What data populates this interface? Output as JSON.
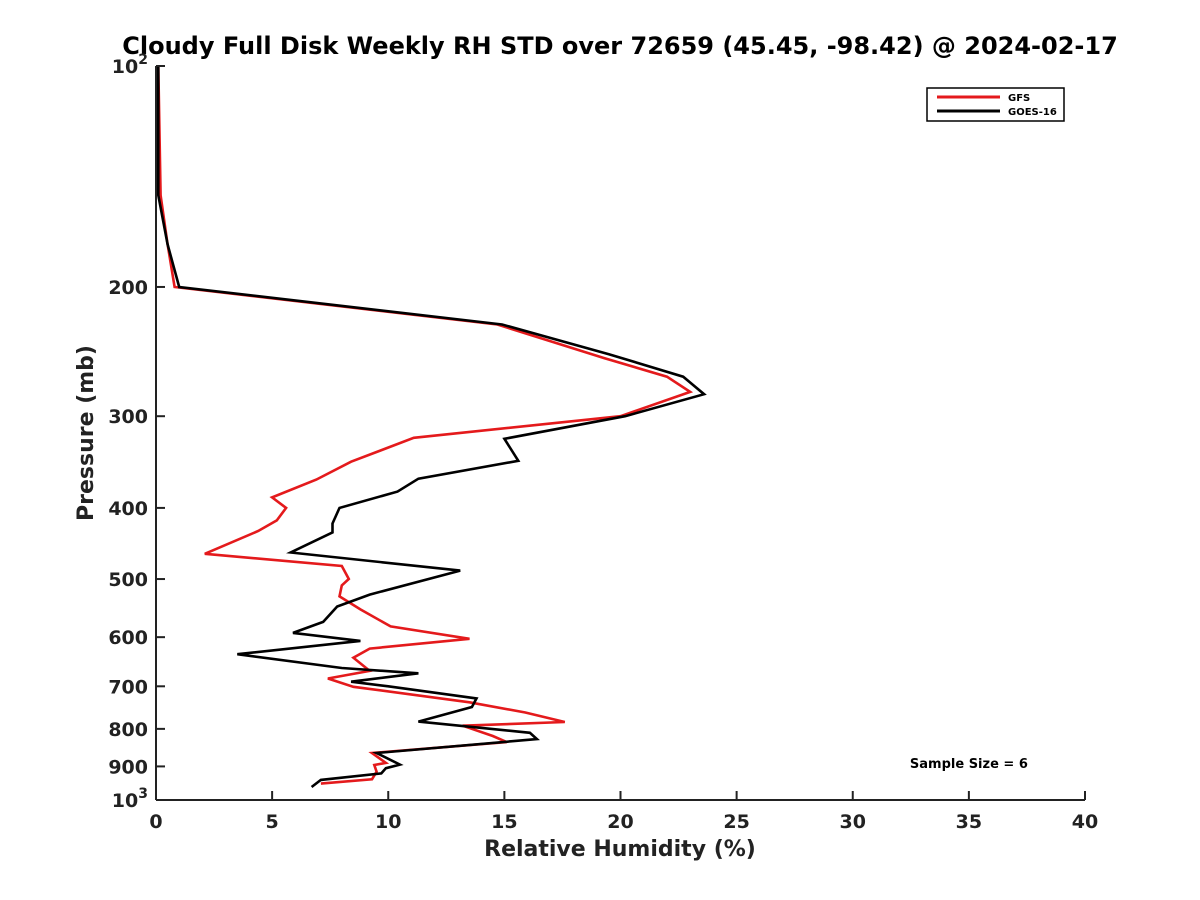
{
  "chart_data": {
    "type": "line",
    "title": "Cloudy Full Disk Weekly RH STD over 72659 (45.45, -98.42) @ 2024-02-17",
    "xlabel": "Relative Humidity (%)",
    "ylabel": "Pressure (mb)",
    "xlim": [
      0,
      40
    ],
    "ylim": [
      100,
      1000
    ],
    "y_scale": "log",
    "y_reversed": true,
    "grid": false,
    "legend_position": "top-right",
    "x_ticks": [
      0,
      5,
      10,
      15,
      20,
      25,
      30,
      35,
      40
    ],
    "x_tick_labels": [
      "0",
      "5",
      "10",
      "15",
      "20",
      "25",
      "30",
      "35",
      "40"
    ],
    "y_ticks": [
      100,
      200,
      300,
      400,
      500,
      600,
      700,
      800,
      900,
      1000
    ],
    "y_tick_labels": [
      {
        "base": "10",
        "exp": "2"
      },
      {
        "base": "200",
        "exp": ""
      },
      {
        "base": "300",
        "exp": ""
      },
      {
        "base": "400",
        "exp": ""
      },
      {
        "base": "500",
        "exp": ""
      },
      {
        "base": "600",
        "exp": ""
      },
      {
        "base": "700",
        "exp": ""
      },
      {
        "base": "800",
        "exp": ""
      },
      {
        "base": "900",
        "exp": ""
      },
      {
        "base": "10",
        "exp": "3"
      }
    ],
    "series": [
      {
        "name": "GFS",
        "color": "#e41a1c",
        "points": [
          [
            0.1,
            100
          ],
          [
            0.2,
            150
          ],
          [
            0.5,
            175
          ],
          [
            0.8,
            200
          ],
          [
            14.7,
            225
          ],
          [
            19.3,
            250
          ],
          [
            22.0,
            265
          ],
          [
            23.0,
            278
          ],
          [
            20.0,
            300
          ],
          [
            11.1,
            321
          ],
          [
            8.4,
            346
          ],
          [
            6.9,
            366
          ],
          [
            5.0,
            387
          ],
          [
            5.6,
            400
          ],
          [
            5.2,
            416
          ],
          [
            4.4,
            430
          ],
          [
            2.1,
            462
          ],
          [
            8.0,
            480
          ],
          [
            8.3,
            500
          ],
          [
            8.0,
            510
          ],
          [
            7.9,
            528
          ],
          [
            8.8,
            550
          ],
          [
            10.1,
            580
          ],
          [
            13.5,
            603
          ],
          [
            9.2,
            622
          ],
          [
            8.5,
            640
          ],
          [
            9.2,
            667
          ],
          [
            7.4,
            683
          ],
          [
            8.5,
            701
          ],
          [
            13.5,
            736
          ],
          [
            15.9,
            760
          ],
          [
            17.6,
            783
          ],
          [
            13.2,
            792
          ],
          [
            14.5,
            818
          ],
          [
            15.1,
            834
          ],
          [
            9.3,
            863
          ],
          [
            9.9,
            890
          ],
          [
            9.4,
            896
          ],
          [
            9.5,
            915
          ],
          [
            9.3,
            937
          ],
          [
            7.1,
            950
          ]
        ]
      },
      {
        "name": "GOES-16",
        "color": "#000000",
        "points": [
          [
            0.1,
            100
          ],
          [
            0.1,
            150
          ],
          [
            0.5,
            175
          ],
          [
            1.0,
            200
          ],
          [
            14.9,
            225
          ],
          [
            19.5,
            247
          ],
          [
            22.7,
            265
          ],
          [
            23.6,
            280
          ],
          [
            20.2,
            300
          ],
          [
            15.0,
            322
          ],
          [
            15.6,
            345
          ],
          [
            11.3,
            365
          ],
          [
            10.4,
            380
          ],
          [
            7.9,
            400
          ],
          [
            7.6,
            420
          ],
          [
            7.6,
            432
          ],
          [
            5.8,
            460
          ],
          [
            13.1,
            487
          ],
          [
            9.2,
            525
          ],
          [
            7.8,
            545
          ],
          [
            7.2,
            572
          ],
          [
            5.9,
            592
          ],
          [
            8.8,
            607
          ],
          [
            3.5,
            633
          ],
          [
            8.0,
            661
          ],
          [
            11.3,
            672
          ],
          [
            8.4,
            690
          ],
          [
            10.0,
            700
          ],
          [
            13.8,
            727
          ],
          [
            13.6,
            747
          ],
          [
            11.3,
            782
          ],
          [
            16.1,
            810
          ],
          [
            16.4,
            826
          ],
          [
            9.5,
            863
          ],
          [
            10.5,
            895
          ],
          [
            9.9,
            905
          ],
          [
            9.7,
            920
          ],
          [
            7.1,
            939
          ],
          [
            6.7,
            960
          ]
        ]
      }
    ],
    "annotations": [
      {
        "text": "Sample Size = 6",
        "x": 35,
        "y": 905
      }
    ]
  }
}
